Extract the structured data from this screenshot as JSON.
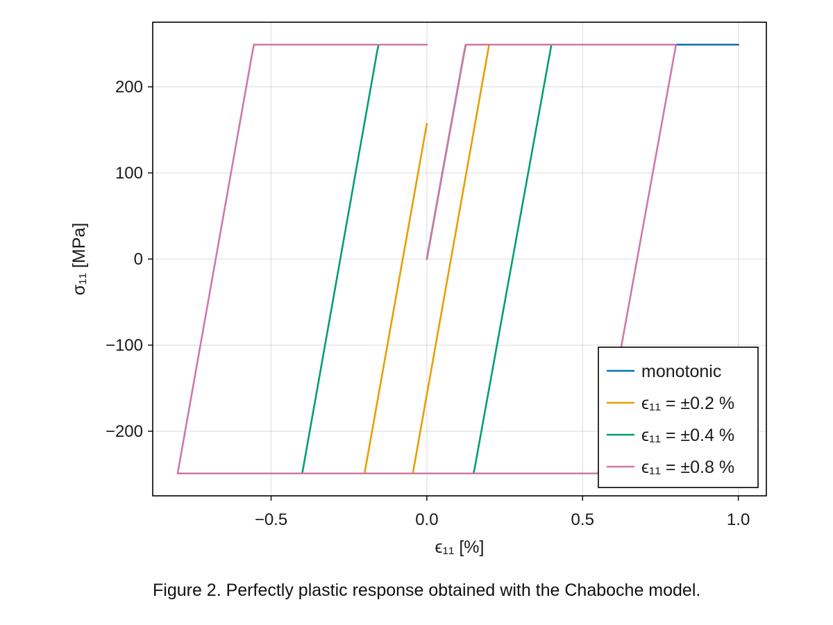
{
  "caption": "Figure 2. Perfectly plastic response obtained with the Chaboche model.",
  "chart_data": {
    "type": "line",
    "xlabel": "ϵ₁₁ [%]",
    "ylabel": "σ₁₁ [MPa]",
    "xlim": [
      -0.88,
      1.09
    ],
    "ylim": [
      -275,
      275
    ],
    "xticks": [
      -0.5,
      0.0,
      0.5,
      1.0
    ],
    "xtick_labels": [
      "−0.5",
      "0.0",
      "0.5",
      "1.0"
    ],
    "yticks": [
      -200,
      -100,
      0,
      100,
      200
    ],
    "ytick_labels": [
      "−200",
      "−100",
      "0",
      "100",
      "200"
    ],
    "grid": true,
    "legend_position": "bottom-right",
    "series": [
      {
        "name": "monotonic",
        "color": "#0072B2",
        "points": [
          [
            0.0,
            0.0
          ],
          [
            0.12,
            240
          ],
          [
            0.125,
            249
          ],
          [
            1.0,
            249
          ]
        ]
      },
      {
        "name": "ϵ₁₁ = ±0.2 %",
        "color": "#E69F00",
        "points": [
          [
            0.0,
            0.0
          ],
          [
            0.12,
            240
          ],
          [
            0.125,
            249
          ],
          [
            0.2,
            249
          ],
          [
            -0.045,
            -249
          ],
          [
            -0.2,
            -249
          ],
          [
            0.0,
            157
          ]
        ]
      },
      {
        "name": "ϵ₁₁ = ±0.4 %",
        "color": "#009E73",
        "points": [
          [
            0.0,
            0.0
          ],
          [
            0.12,
            240
          ],
          [
            0.125,
            249
          ],
          [
            0.4,
            249
          ],
          [
            0.155,
            -240
          ],
          [
            0.15,
            -249
          ],
          [
            -0.4,
            -249
          ],
          [
            -0.16,
            240
          ],
          [
            -0.155,
            249
          ],
          [
            0.0,
            249
          ]
        ]
      },
      {
        "name": "ϵ₁₁ = ±0.8 %",
        "color": "#CC79A7",
        "points": [
          [
            0.0,
            0.0
          ],
          [
            0.12,
            240
          ],
          [
            0.125,
            249
          ],
          [
            0.8,
            249
          ],
          [
            0.555,
            -240
          ],
          [
            0.55,
            -249
          ],
          [
            -0.8,
            -249
          ],
          [
            -0.56,
            240
          ],
          [
            -0.555,
            249
          ],
          [
            0.0,
            249
          ]
        ]
      }
    ]
  }
}
